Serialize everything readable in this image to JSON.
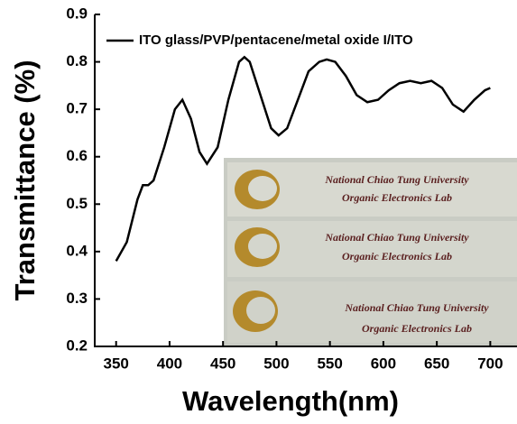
{
  "chart_data": {
    "type": "line",
    "x_label": "Wavelength(nm)",
    "y_label": "Transmittance (%)",
    "x": [
      350,
      360,
      370,
      375,
      380,
      385,
      395,
      405,
      412,
      420,
      428,
      435,
      445,
      455,
      465,
      470,
      475,
      485,
      495,
      502,
      510,
      520,
      530,
      540,
      547,
      555,
      565,
      575,
      585,
      595,
      605,
      615,
      625,
      635,
      645,
      655,
      665,
      675,
      685,
      695,
      700
    ],
    "series": [
      {
        "name": "ITO glass/PVP/pentacene/metal oxide I/ITO",
        "color": "#000000",
        "values": [
          0.38,
          0.42,
          0.51,
          0.54,
          0.54,
          0.55,
          0.62,
          0.7,
          0.72,
          0.68,
          0.61,
          0.585,
          0.62,
          0.72,
          0.8,
          0.81,
          0.8,
          0.73,
          0.66,
          0.645,
          0.66,
          0.72,
          0.78,
          0.8,
          0.805,
          0.8,
          0.77,
          0.73,
          0.715,
          0.72,
          0.74,
          0.755,
          0.76,
          0.755,
          0.76,
          0.745,
          0.71,
          0.695,
          0.72,
          0.74,
          0.745
        ]
      }
    ],
    "xlim": [
      330,
      725
    ],
    "ylim": [
      0.2,
      0.9
    ],
    "xticks": [
      350,
      400,
      450,
      500,
      550,
      600,
      650,
      700
    ],
    "yticks": [
      0.2,
      0.3,
      0.4,
      0.5,
      0.6,
      0.7,
      0.8,
      0.9
    ],
    "legend": "top-left",
    "inset_text": [
      "National Chiao Tung University",
      "Organic Electronics Lab",
      "National Chiao Tung University",
      "Organic Electronics Lab",
      "National Chiao Tung University",
      "Organic Electronics Lab"
    ]
  }
}
